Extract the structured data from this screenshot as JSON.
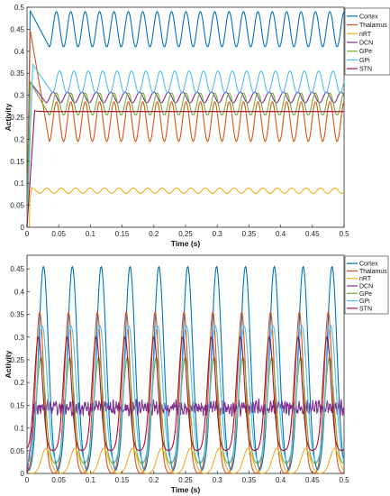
{
  "chart_data": [
    {
      "type": "line",
      "title": "",
      "xlabel": "Time (s)",
      "ylabel": "Activity",
      "xlim": [
        0,
        0.5
      ],
      "ylim": [
        0,
        0.5
      ],
      "xticks": [
        "0",
        "0.05",
        "0.1",
        "0.15",
        "0.2",
        "0.25",
        "0.3",
        "0.35",
        "0.4",
        "0.45",
        "0.5"
      ],
      "yticks": [
        "0",
        "0.05",
        "0.1",
        "0.15",
        "0.2",
        "0.25",
        "0.3",
        "0.35",
        "0.4",
        "0.45",
        "0.5"
      ],
      "legend_position": "top-right",
      "grid": false,
      "series": [
        {
          "name": "Cortex",
          "color": "#0072BD",
          "start": 0.0,
          "peak": [
            0.005,
            0.492
          ],
          "settle": 0.035,
          "mean": 0.45,
          "amp": 0.04,
          "period": 0.0227,
          "phase": 0.0
        },
        {
          "name": "Thalamus",
          "color": "#D95319",
          "start": 0.0,
          "peak": [
            0.005,
            0.448
          ],
          "settle": 0.035,
          "mean": 0.24,
          "amp": 0.045,
          "period": 0.0227,
          "phase": 0.3
        },
        {
          "name": "nRT",
          "color": "#EDB120",
          "start": 0.0,
          "peak": [
            0.007,
            0.09
          ],
          "settle": 0.02,
          "mean": 0.083,
          "amp": 0.006,
          "period": 0.0227,
          "phase": 0.5
        },
        {
          "name": "DCN",
          "color": "#7E2F8E",
          "start": 0.0,
          "peak": [
            0.005,
            0.33
          ],
          "settle": 0.03,
          "mean": 0.295,
          "amp": 0.012,
          "period": 0.0227,
          "phase": 0.2
        },
        {
          "name": "GPe",
          "color": "#77AC30",
          "start": 0.0,
          "peak": [
            0.005,
            0.33
          ],
          "settle": 0.035,
          "mean": 0.28,
          "amp": 0.025,
          "period": 0.0227,
          "phase": 0.6
        },
        {
          "name": "GPi",
          "color": "#4DBEEE",
          "start": 0.0,
          "peak": [
            0.009,
            0.37
          ],
          "settle": 0.04,
          "mean": 0.33,
          "amp": 0.025,
          "period": 0.0227,
          "phase": 0.1
        },
        {
          "name": "STN",
          "color": "#A2142F",
          "start": 0.0,
          "peak": [
            0.012,
            0.265
          ],
          "settle": 0.02,
          "mean": 0.263,
          "amp": 0.0,
          "period": 0.0227,
          "phase": 0.0
        }
      ]
    },
    {
      "type": "line",
      "title": "",
      "xlabel": "Time (s)",
      "ylabel": "Activity",
      "xlim": [
        0,
        0.5
      ],
      "ylim": [
        0,
        0.48
      ],
      "xticks": [
        "0",
        "0.05",
        "0.1",
        "0.15",
        "0.2",
        "0.25",
        "0.3",
        "0.35",
        "0.4",
        "0.45",
        "0.5"
      ],
      "yticks": [
        "0",
        "0.05",
        "0.1",
        "0.15",
        "0.2",
        "0.25",
        "0.3",
        "0.35",
        "0.4",
        "0.45"
      ],
      "legend_position": "top-right",
      "grid": false,
      "series": [
        {
          "name": "Cortex",
          "color": "#0072BD",
          "peak_max": 0.455,
          "trough": 0.0,
          "period": 0.0455,
          "peak_t": 0.026,
          "width": 0.011
        },
        {
          "name": "Thalamus",
          "color": "#D95319",
          "peak_max": 0.355,
          "trough": 0.0,
          "period": 0.0455,
          "peak_t": 0.02,
          "width": 0.009
        },
        {
          "name": "nRT",
          "color": "#EDB120",
          "peak_max": 0.055,
          "trough": 0.0,
          "period": 0.0455,
          "peak_t": 0.03,
          "width": 0.01
        },
        {
          "name": "DCN",
          "color": "#7E2F8E",
          "mean": 0.145,
          "jitter": 0.012,
          "noisy": true
        },
        {
          "name": "GPe",
          "color": "#77AC30",
          "peak_max": 0.255,
          "trough": 0.02,
          "period": 0.0455,
          "peak_t": 0.022,
          "width": 0.01
        },
        {
          "name": "GPi",
          "color": "#4DBEEE",
          "peak_max": 0.325,
          "trough": 0.02,
          "period": 0.0455,
          "peak_t": 0.024,
          "width": 0.011
        },
        {
          "name": "STN",
          "color": "#A2142F",
          "peak_max": 0.3,
          "trough": 0.05,
          "period": 0.0455,
          "peak_t": 0.018,
          "width": 0.009
        }
      ]
    }
  ]
}
